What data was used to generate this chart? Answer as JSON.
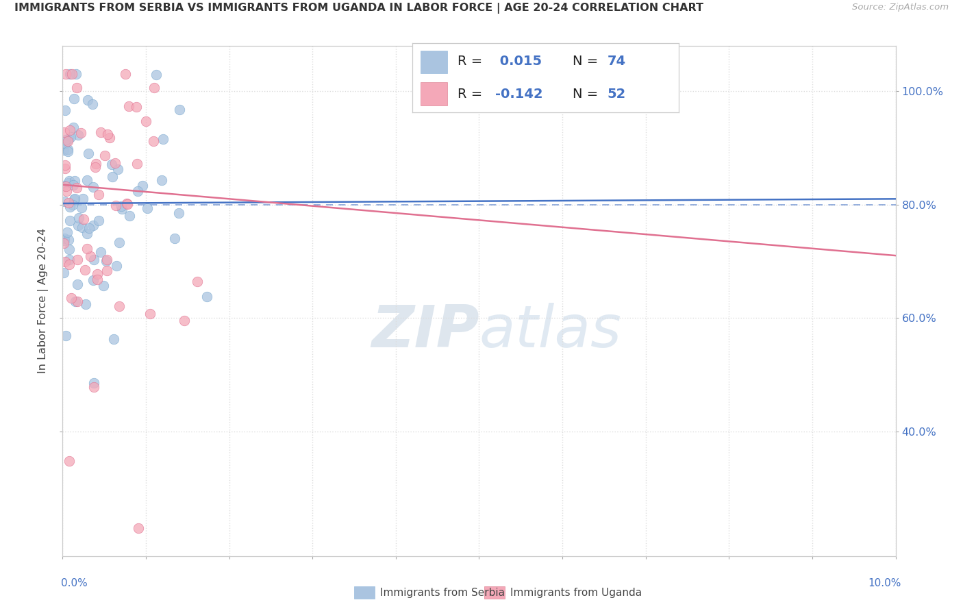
{
  "title": "IMMIGRANTS FROM SERBIA VS IMMIGRANTS FROM UGANDA IN LABOR FORCE | AGE 20-24 CORRELATION CHART",
  "source": "Source: ZipAtlas.com",
  "ylabel": "In Labor Force | Age 20-24",
  "xlim": [
    0.0,
    10.0
  ],
  "ylim": [
    18.0,
    108.0
  ],
  "serbia_color": "#aac4e0",
  "serbia_edge": "#7aaad0",
  "uganda_color": "#f4a8b8",
  "uganda_edge": "#e07090",
  "serbia_line_color": "#4472c4",
  "uganda_line_color": "#e07090",
  "ref_line_color": "#4472c4",
  "serbia_R": 0.015,
  "serbia_N": 74,
  "uganda_R": -0.142,
  "uganda_N": 52,
  "ytick_vals": [
    40.0,
    60.0,
    80.0,
    100.0
  ],
  "ytick_labels": [
    "40.0%",
    "60.0%",
    "80.0%",
    "100.0%"
  ],
  "grid_color": "#dddddd",
  "watermark_color": "#d0dce8",
  "trend_serbia_x0": 0.0,
  "trend_serbia_y0": 80.2,
  "trend_serbia_x1": 10.0,
  "trend_serbia_y1": 81.0,
  "trend_uganda_x0": 0.0,
  "trend_uganda_y0": 83.5,
  "trend_uganda_x1": 10.0,
  "trend_uganda_y1": 71.0
}
